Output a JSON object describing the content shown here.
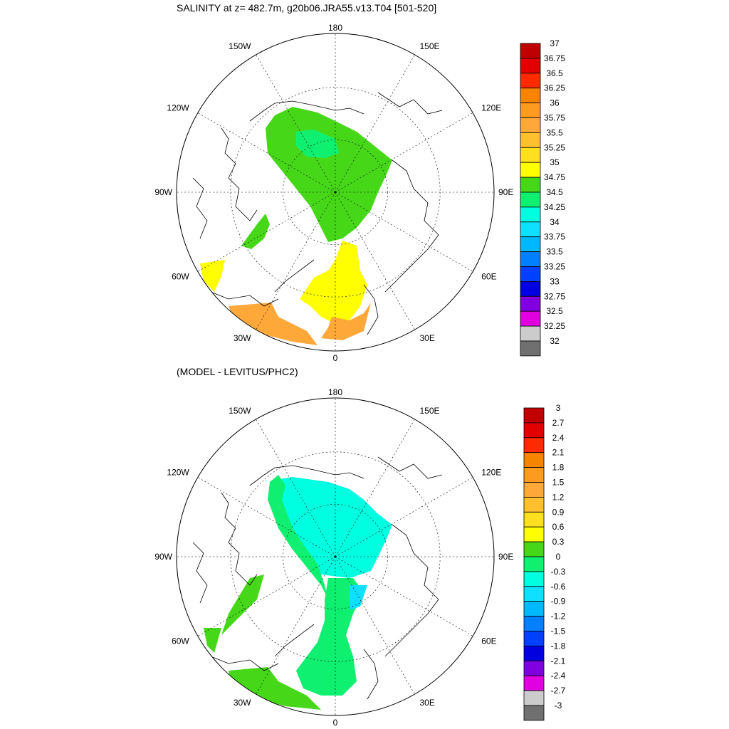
{
  "panels": [
    {
      "id": "salinity",
      "title": "SALINITY at z= 482.7m, g20b06.JRA55.v13.T04 [501-520]",
      "lon_labels": [
        "180",
        "150E",
        "120E",
        "90E",
        "60E",
        "30E",
        "0",
        "30W",
        "60W",
        "90W",
        "120W",
        "150W"
      ],
      "colorbar": {
        "levels": [
          "37",
          "36.75",
          "36.5",
          "36.25",
          "36",
          "35.75",
          "35.5",
          "35.25",
          "35",
          "34.75",
          "34.5",
          "34.25",
          "34",
          "33.75",
          "33.5",
          "33.25",
          "33",
          "32.75",
          "32.5",
          "32.25",
          "32"
        ],
        "colors": [
          "#c00000",
          "#e20000",
          "#ff2a00",
          "#f78400",
          "#ff9a20",
          "#ffa83a",
          "#ffc030",
          "#ffe020",
          "#ffff00",
          "#46d818",
          "#10f070",
          "#00ffe0",
          "#10e0ff",
          "#00b8ff",
          "#0080ff",
          "#0040ff",
          "#0000e0",
          "#8000e0",
          "#e000e0",
          "#cccccc",
          "#707070"
        ]
      }
    },
    {
      "id": "difference",
      "title": "(MODEL - LEVITUS/PHC2)",
      "lon_labels": [
        "180",
        "150E",
        "120E",
        "90E",
        "60E",
        "30E",
        "0",
        "30W",
        "60W",
        "90W",
        "120W",
        "150W"
      ],
      "colorbar": {
        "levels": [
          "3",
          "2.7",
          "2.4",
          "2.1",
          "1.8",
          "1.5",
          "1.2",
          "0.9",
          "0.6",
          "0.3",
          "0",
          "-0.3",
          "-0.6",
          "-0.9",
          "-1.2",
          "-1.5",
          "-1.8",
          "-2.1",
          "-2.4",
          "-2.7",
          "-3"
        ],
        "colors": [
          "#c00000",
          "#e20000",
          "#ff2a00",
          "#f78400",
          "#ff9a20",
          "#ffa83a",
          "#ffc030",
          "#ffe020",
          "#ffff00",
          "#46d818",
          "#10f070",
          "#00ffe0",
          "#10e0ff",
          "#00b8ff",
          "#0080ff",
          "#0040ff",
          "#0000e0",
          "#8000e0",
          "#e000e0",
          "#cccccc",
          "#707070"
        ]
      }
    }
  ],
  "field_colors": {
    "salinity_fill": [
      "#46d818",
      "#ffff00",
      "#ffa83a",
      "#10f070",
      "#00ffe0"
    ],
    "difference_fill": [
      "#10f070",
      "#46d818",
      "#00ffe0",
      "#10e0ff"
    ]
  }
}
